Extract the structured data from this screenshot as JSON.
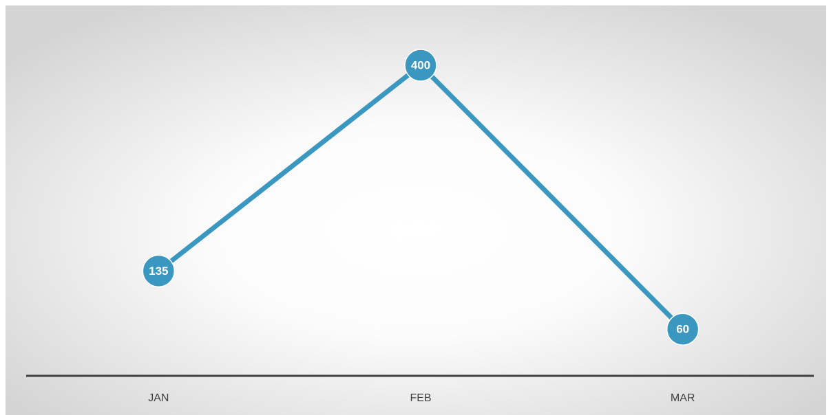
{
  "chart_data": {
    "type": "line",
    "categories": [
      "JAN",
      "FEB",
      "MAR"
    ],
    "values": [
      135,
      400,
      60
    ],
    "color": "#3a97c0"
  }
}
